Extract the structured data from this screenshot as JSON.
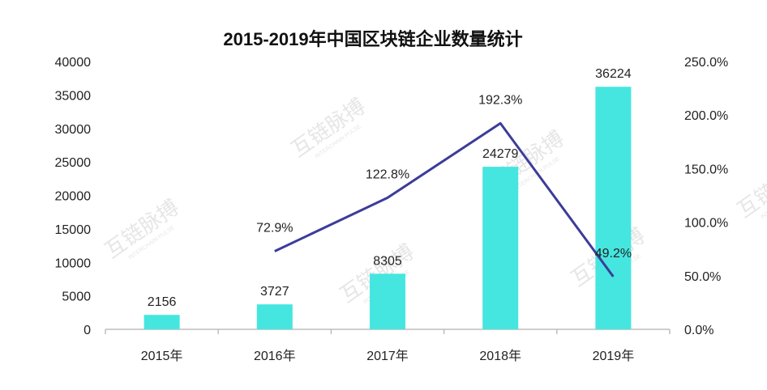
{
  "colors": {
    "bar": "#45E6DF",
    "line": "#3C3C9A",
    "axis": "#BDBDBD",
    "text": "#222222",
    "title": "#111111",
    "watermark": "#E6E6E6"
  },
  "chart_data": {
    "type": "bar",
    "title": "2015-2019年中国区块链企业数量统计",
    "xlabel": "",
    "ylabel": "",
    "categories": [
      "2015年",
      "2016年",
      "2017年",
      "2018年",
      "2019年"
    ],
    "series": [
      {
        "type": "bar",
        "axis": "left",
        "values": [
          2156,
          3727,
          8305,
          24279,
          36224
        ],
        "labels": [
          "2156",
          "3727",
          "8305",
          "24279",
          "36224"
        ]
      },
      {
        "type": "line",
        "axis": "right",
        "values": [
          null,
          72.9,
          122.8,
          192.3,
          49.2
        ],
        "labels": [
          "",
          "72.9%",
          "122.8%",
          "192.3%",
          "49.2%"
        ]
      }
    ],
    "y_left": {
      "range": [
        0,
        40000
      ],
      "ticks": [
        0,
        5000,
        10000,
        15000,
        20000,
        25000,
        30000,
        35000,
        40000
      ],
      "tick_labels": [
        "0",
        "5000",
        "10000",
        "15000",
        "20000",
        "25000",
        "30000",
        "35000",
        "40000"
      ]
    },
    "y_right": {
      "range": [
        0,
        250
      ],
      "ticks": [
        0,
        50,
        100,
        150,
        200,
        250
      ],
      "tick_labels": [
        "0.0%",
        "50.0%",
        "100.0%",
        "150.0%",
        "200.0%",
        "250.0%"
      ]
    },
    "grid": false,
    "legend": "none"
  },
  "watermark": {
    "text": "互链脉搏",
    "subtext": "INTERCHAIN PULSE"
  }
}
